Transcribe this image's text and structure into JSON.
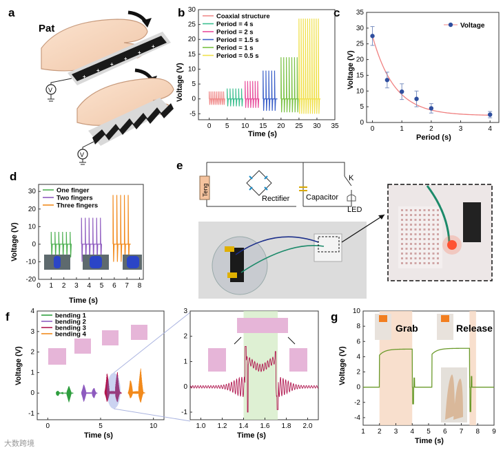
{
  "panel_labels": {
    "a": "a",
    "b": "b",
    "c": "c",
    "d": "d",
    "e": "e",
    "f": "f",
    "g": "g"
  },
  "pat_label": "Pat",
  "charge_plus": "+",
  "charge_minus": "−",
  "voltmeter_symbol": "V",
  "circuit": {
    "teng": "Teng",
    "rectifier": "Rectifier",
    "capacitor": "Capacitor",
    "switch": "K",
    "led": "LED"
  },
  "watermark": "大数跨境",
  "chart_data": [
    {
      "id": "b",
      "type": "line",
      "title": "",
      "xlabel": "Time (s)",
      "ylabel": "Voltage (V)",
      "xlim": [
        -3,
        35
      ],
      "ylim": [
        -7,
        30
      ],
      "xticks": [
        0,
        5,
        10,
        15,
        20,
        25,
        30,
        35
      ],
      "yticks": [
        -5,
        0,
        5,
        10,
        15,
        20,
        25,
        30
      ],
      "legend_position": "top-left",
      "series": [
        {
          "name": "Coaxial structure",
          "color": "#f08a8a",
          "start": 0,
          "end": 4,
          "period": 0.5,
          "amp_pos": 2.5,
          "amp_neg": -2.0
        },
        {
          "name": "Period = 4 s",
          "color": "#3bbf8f",
          "start": 5,
          "end": 9,
          "period": 0.8,
          "amp_pos": 3.5,
          "amp_neg": -2.5
        },
        {
          "name": "Period = 2 s",
          "color": "#e74c9b",
          "start": 10,
          "end": 13.5,
          "period": 0.7,
          "amp_pos": 6.0,
          "amp_neg": -3.0
        },
        {
          "name": "Period = 1.5 s",
          "color": "#3a5fc8",
          "start": 15,
          "end": 19,
          "period": 0.8,
          "amp_pos": 9.5,
          "amp_neg": -4.0
        },
        {
          "name": "Period = 1 s",
          "color": "#7ac143",
          "start": 20,
          "end": 24.5,
          "period": 0.75,
          "amp_pos": 14.0,
          "amp_neg": -4.5
        },
        {
          "name": "Period = 0.5 s",
          "color": "#f0e04a",
          "start": 25,
          "end": 31,
          "period": 0.6,
          "amp_pos": 27.0,
          "amp_neg": -5.0
        }
      ]
    },
    {
      "id": "c",
      "type": "scatter",
      "title": "",
      "xlabel": "Period (s)",
      "ylabel": "Voltage (V)",
      "xlim": [
        -0.2,
        4.3
      ],
      "ylim": [
        0,
        35
      ],
      "xticks": [
        0,
        1,
        2,
        3,
        4
      ],
      "yticks": [
        0,
        5,
        10,
        15,
        20,
        25,
        30,
        35
      ],
      "legend_position": "top-right",
      "series": [
        {
          "name": "Voltage",
          "color": "#2f4f9f",
          "fit_color": "#f08080",
          "x": [
            0,
            0.5,
            1,
            1.5,
            2,
            4
          ],
          "y": [
            27.5,
            13.5,
            9.8,
            7.5,
            4.5,
            2.5
          ],
          "err": [
            3.0,
            2.5,
            2.5,
            2.5,
            1.5,
            1.0
          ]
        }
      ]
    },
    {
      "id": "d",
      "type": "line",
      "title": "",
      "xlabel": "Time (s)",
      "ylabel": "Voltage (V)",
      "xlim": [
        0,
        8.3
      ],
      "ylim": [
        -20,
        34
      ],
      "xticks": [
        0,
        1,
        2,
        3,
        4,
        5,
        6,
        7,
        8
      ],
      "yticks": [
        -20,
        -10,
        0,
        10,
        20,
        30
      ],
      "legend_position": "top-left",
      "series": [
        {
          "name": "One finger",
          "color": "#4caf50",
          "start": 1.0,
          "end": 2.5,
          "period": 0.3,
          "amp_pos": 7.0,
          "amp_neg": -7.5
        },
        {
          "name": "Two fingers",
          "color": "#8e5bbf",
          "start": 3.4,
          "end": 4.9,
          "period": 0.3,
          "amp_pos": 15.0,
          "amp_neg": -10.0
        },
        {
          "name": "Three fingers",
          "color": "#f28a1c",
          "start": 5.9,
          "end": 7.3,
          "period": 0.3,
          "amp_pos": 28.0,
          "amp_neg": -10.0
        }
      ]
    },
    {
      "id": "f_left",
      "type": "line",
      "title": "",
      "xlabel": "Time (s)",
      "ylabel": "Voltage (V)",
      "xlim": [
        -1,
        11
      ],
      "ylim": [
        -1.3,
        4
      ],
      "xticks": [
        0,
        5,
        10
      ],
      "yticks": [
        -1,
        0,
        1,
        2,
        3,
        4
      ],
      "legend_position": "top-left",
      "series": [
        {
          "name": "bending 1",
          "color": "#2e9e3e",
          "start": 0.8,
          "end": 2.4,
          "pulses": [
            1.0,
            2.0
          ],
          "amp_pos": 0.35,
          "amp_neg": -0.45
        },
        {
          "name": "bending 2",
          "color": "#8e5bbf",
          "start": 3.2,
          "end": 4.7,
          "pulses": [
            3.4,
            4.4
          ],
          "amp_pos": 0.55,
          "amp_neg": -0.55
        },
        {
          "name": "bending 3",
          "color": "#b0174f",
          "start": 5.4,
          "end": 7.0,
          "pulses": [
            5.6,
            6.6
          ],
          "amp_pos": 1.6,
          "amp_neg": -0.7
        },
        {
          "name": "bending 4",
          "color": "#f28a1c",
          "start": 7.6,
          "end": 9.2,
          "pulses": [
            7.8,
            8.8
          ],
          "amp_pos": 1.5,
          "amp_neg": -0.6
        }
      ]
    },
    {
      "id": "f_right",
      "type": "line",
      "title": "",
      "xlabel": "Time (s)",
      "ylabel": "",
      "xlim": [
        0.9,
        2.1
      ],
      "ylim": [
        -1.3,
        3
      ],
      "xticks": [
        1.0,
        1.2,
        1.4,
        1.6,
        1.8,
        2.0
      ],
      "yticks": [
        -1,
        0,
        1,
        2,
        3
      ],
      "shaded": [
        1.4,
        1.72
      ],
      "series": [
        {
          "name": "bending 3 (zoom)",
          "color": "#b0174f"
        }
      ]
    },
    {
      "id": "g",
      "type": "line",
      "title": "",
      "xlabel": "Time (s)",
      "ylabel": "Voltage (V)",
      "xlim": [
        1,
        9
      ],
      "ylim": [
        -5,
        10
      ],
      "xticks": [
        1,
        2,
        3,
        4,
        5,
        6,
        7,
        8,
        9
      ],
      "yticks": [
        -4,
        -2,
        0,
        2,
        4,
        6,
        8,
        10
      ],
      "annotations": [
        "Grab",
        "Release"
      ],
      "shaded": [
        [
          2.0,
          4.0
        ],
        [
          7.5,
          7.9
        ]
      ],
      "series": [
        {
          "name": "Voltage",
          "color": "#6a9a2a"
        }
      ]
    }
  ]
}
